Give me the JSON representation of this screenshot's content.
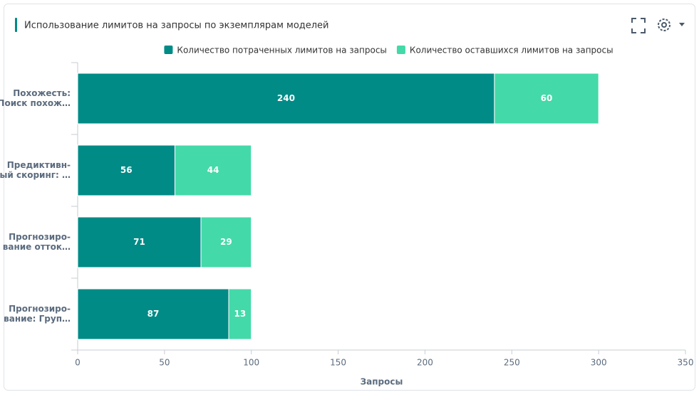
{
  "chart_data": {
    "type": "stacked-bar-horizontal",
    "title": "Использование лимитов на запросы по экземплярам моделей",
    "categories": [
      [
        "Похожесть:",
        "Поиск похож…"
      ],
      [
        "Предиктивн-",
        "ый скоринг: …"
      ],
      [
        "Прогнозиро-",
        "вание отток…"
      ],
      [
        "Прогнозиро-",
        "вание: Груп…"
      ]
    ],
    "series": [
      {
        "name": "Количество потраченных лимитов на запросы",
        "color": "#008b86",
        "values": [
          240,
          56,
          71,
          87
        ]
      },
      {
        "name": "Количество оставшихся лимитов на запросы",
        "color": "#44d9a8",
        "values": [
          60,
          44,
          29,
          13
        ]
      }
    ],
    "xlim": [
      0,
      350
    ],
    "xticks": [
      0,
      50,
      100,
      150,
      200,
      250,
      300,
      350
    ],
    "xlabel": "Запросы",
    "legend": "top"
  }
}
